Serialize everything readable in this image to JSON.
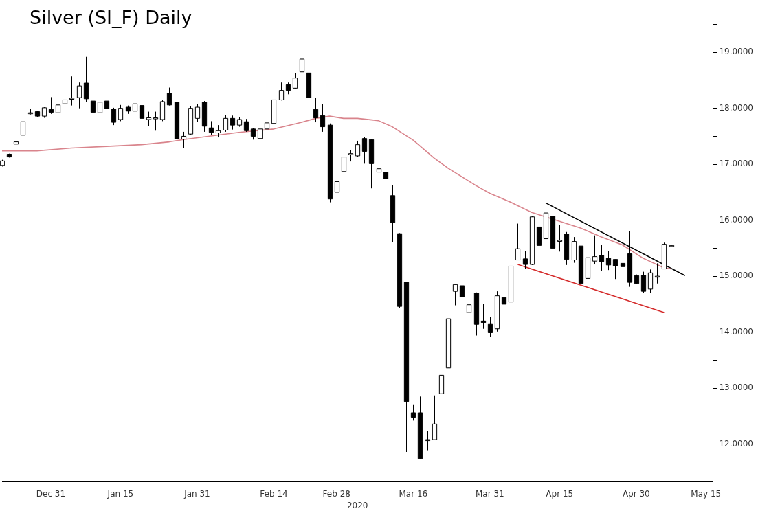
{
  "chart_data": {
    "type": "candlestick",
    "title": "Silver (SI_F) Daily",
    "xlabel": "2020",
    "categories": [
      null,
      null,
      null,
      null,
      null,
      null,
      null,
      "Dec 31",
      null,
      null,
      null,
      null,
      null,
      null,
      null,
      null,
      null,
      "Jan 15",
      null,
      null,
      null,
      null,
      null,
      null,
      null,
      null,
      null,
      null,
      "Jan 31",
      null,
      null,
      null,
      null,
      null,
      null,
      null,
      null,
      null,
      null,
      "Feb 14",
      null,
      null,
      null,
      null,
      null,
      null,
      null,
      null,
      "Feb 28",
      null,
      null,
      null,
      null,
      null,
      null,
      null,
      null,
      null,
      null,
      "Mar 16",
      null,
      null,
      null,
      null,
      null,
      null,
      null,
      null,
      null,
      null,
      "Mar 31",
      null,
      null,
      null,
      null,
      null,
      null,
      null,
      null,
      null,
      "Apr 15",
      null,
      null,
      null,
      null,
      null,
      null,
      null,
      null,
      null,
      null,
      "Apr 30",
      null,
      null,
      null,
      null,
      null,
      null,
      null,
      null,
      null,
      "May 15",
      null
    ],
    "ohlc": [
      [
        16.98,
        17.08,
        16.96,
        17.06
      ],
      [
        17.18,
        17.19,
        17.12,
        17.13
      ],
      [
        17.36,
        17.41,
        17.35,
        17.4
      ],
      [
        17.52,
        17.77,
        17.51,
        17.76
      ],
      [
        17.91,
        17.99,
        17.89,
        17.92
      ],
      [
        17.94,
        17.95,
        17.85,
        17.86
      ],
      [
        17.86,
        18.02,
        17.83,
        18.01
      ],
      [
        17.98,
        18.2,
        17.9,
        17.93
      ],
      [
        17.92,
        18.17,
        17.82,
        18.06
      ],
      [
        18.08,
        18.35,
        18.06,
        18.15
      ],
      [
        18.17,
        18.57,
        18.05,
        18.18
      ],
      [
        18.19,
        18.46,
        18.0,
        18.4
      ],
      [
        18.45,
        18.92,
        18.11,
        18.17
      ],
      [
        18.13,
        18.24,
        17.82,
        17.93
      ],
      [
        17.92,
        18.17,
        17.87,
        18.11
      ],
      [
        18.13,
        18.17,
        17.92,
        17.99
      ],
      [
        17.99,
        18.01,
        17.7,
        17.75
      ],
      [
        17.8,
        18.06,
        17.77,
        18.0
      ],
      [
        18.02,
        18.05,
        17.9,
        17.95
      ],
      [
        17.95,
        18.18,
        17.92,
        18.08
      ],
      [
        18.05,
        18.18,
        17.63,
        17.82
      ],
      [
        17.8,
        17.94,
        17.68,
        17.83
      ],
      [
        17.82,
        17.94,
        17.6,
        17.83
      ],
      [
        17.8,
        18.15,
        17.77,
        18.12
      ],
      [
        18.27,
        18.37,
        18.05,
        18.06
      ],
      [
        18.11,
        18.12,
        17.43,
        17.45
      ],
      [
        17.45,
        17.58,
        17.29,
        17.5
      ],
      [
        17.54,
        18.04,
        17.53,
        18.0
      ],
      [
        17.82,
        18.08,
        17.76,
        18.02
      ],
      [
        18.11,
        18.13,
        17.58,
        17.68
      ],
      [
        17.65,
        17.77,
        17.52,
        17.57
      ],
      [
        17.56,
        17.7,
        17.48,
        17.6
      ],
      [
        17.61,
        17.88,
        17.58,
        17.82
      ],
      [
        17.82,
        17.87,
        17.62,
        17.7
      ],
      [
        17.7,
        17.84,
        17.67,
        17.8
      ],
      [
        17.76,
        17.81,
        17.58,
        17.6
      ],
      [
        17.63,
        17.64,
        17.44,
        17.5
      ],
      [
        17.46,
        17.73,
        17.44,
        17.63
      ],
      [
        17.63,
        17.81,
        17.62,
        17.74
      ],
      [
        17.73,
        18.23,
        17.69,
        18.15
      ],
      [
        18.15,
        18.46,
        18.14,
        18.32
      ],
      [
        18.42,
        18.46,
        18.25,
        18.32
      ],
      [
        18.36,
        18.63,
        18.35,
        18.54
      ],
      [
        18.65,
        18.94,
        18.54,
        18.88
      ],
      [
        18.63,
        18.63,
        17.82,
        18.19
      ],
      [
        17.98,
        18.18,
        17.75,
        17.83
      ],
      [
        17.87,
        18.08,
        17.58,
        17.67
      ],
      [
        17.7,
        17.73,
        16.32,
        16.38
      ],
      [
        16.5,
        16.98,
        16.38,
        16.69
      ],
      [
        16.87,
        17.31,
        16.75,
        17.13
      ],
      [
        17.18,
        17.25,
        17.05,
        17.19
      ],
      [
        17.15,
        17.42,
        17.13,
        17.35
      ],
      [
        17.46,
        17.49,
        17.01,
        17.23
      ],
      [
        17.44,
        17.44,
        16.57,
        17.01
      ],
      [
        16.86,
        17.15,
        16.77,
        16.92
      ],
      [
        16.86,
        16.87,
        16.65,
        16.74
      ],
      [
        16.44,
        16.63,
        15.61,
        15.96
      ],
      [
        15.76,
        15.77,
        14.43,
        14.46
      ],
      [
        14.89,
        14.89,
        11.86,
        12.76
      ],
      [
        12.56,
        12.71,
        12.42,
        12.48
      ],
      [
        12.56,
        12.85,
        11.74,
        11.74
      ],
      [
        12.07,
        12.23,
        11.89,
        12.08
      ],
      [
        12.08,
        12.87,
        12.07,
        12.36
      ],
      [
        12.9,
        13.23,
        12.9,
        13.23
      ],
      [
        13.36,
        14.24,
        13.36,
        14.24
      ],
      [
        14.73,
        14.86,
        14.48,
        14.85
      ],
      [
        14.83,
        14.84,
        14.62,
        14.63
      ],
      [
        14.35,
        14.5,
        14.34,
        14.49
      ],
      [
        14.7,
        14.71,
        13.94,
        14.14
      ],
      [
        14.2,
        14.5,
        14.06,
        14.17
      ],
      [
        14.14,
        14.27,
        13.92,
        13.99
      ],
      [
        14.06,
        14.73,
        14.01,
        14.65
      ],
      [
        14.62,
        14.76,
        14.43,
        14.5
      ],
      [
        14.54,
        15.42,
        14.37,
        15.18
      ],
      [
        15.29,
        15.94,
        15.29,
        15.49
      ],
      [
        15.31,
        15.45,
        15.13,
        15.21
      ],
      [
        15.21,
        16.08,
        15.2,
        16.06
      ],
      [
        15.88,
        15.98,
        15.39,
        15.55
      ],
      [
        15.67,
        16.31,
        15.67,
        16.13
      ],
      [
        16.07,
        16.08,
        15.49,
        15.5
      ],
      [
        15.63,
        15.92,
        15.44,
        15.64
      ],
      [
        15.75,
        15.79,
        15.2,
        15.3
      ],
      [
        15.29,
        15.7,
        15.24,
        15.62
      ],
      [
        15.54,
        15.54,
        14.56,
        14.87
      ],
      [
        14.96,
        15.34,
        14.81,
        15.33
      ],
      [
        15.27,
        15.73,
        15.21,
        15.35
      ],
      [
        15.37,
        15.56,
        15.1,
        15.26
      ],
      [
        15.32,
        15.45,
        15.11,
        15.2
      ],
      [
        15.3,
        15.3,
        14.95,
        15.18
      ],
      [
        15.23,
        15.49,
        15.13,
        15.17
      ],
      [
        15.4,
        15.8,
        14.81,
        14.89
      ],
      [
        15.01,
        15.03,
        14.86,
        14.87
      ],
      [
        15.02,
        15.08,
        14.7,
        14.73
      ],
      [
        14.77,
        15.12,
        14.7,
        15.06
      ],
      [
        14.99,
        15.23,
        14.87,
        15.0
      ],
      [
        15.13,
        15.6,
        15.13,
        15.57
      ],
      [
        15.55,
        15.56,
        15.54,
        15.55
      ],
      null,
      null,
      null,
      null,
      null,
      null
    ],
    "series": [
      {
        "type": "line",
        "color": "#d9848c",
        "values": [
          17.24,
          null,
          null,
          null,
          null,
          17.24,
          null,
          null,
          null,
          null,
          17.29,
          null,
          null,
          null,
          null,
          17.32,
          null,
          null,
          null,
          null,
          17.35,
          null,
          null,
          null,
          17.4,
          null,
          17.44,
          null,
          null,
          17.49,
          null,
          null,
          null,
          null,
          17.57,
          null,
          null,
          null,
          null,
          17.63,
          null,
          null,
          null,
          17.75,
          null,
          17.82,
          null,
          17.86,
          null,
          17.82,
          null,
          17.82,
          null,
          null,
          17.78,
          null,
          17.67,
          null,
          null,
          17.43,
          null,
          null,
          17.11,
          null,
          16.93,
          null,
          null,
          null,
          16.62,
          null,
          16.48,
          null,
          null,
          16.32,
          null,
          null,
          16.14,
          null,
          null,
          16.02,
          null,
          null,
          null,
          15.86,
          null,
          null,
          15.7,
          null,
          null,
          15.56,
          null,
          null,
          15.32,
          null,
          null,
          15.15,
          15.13,
          null,
          null,
          null,
          null,
          null,
          null
        ]
      },
      {
        "type": "line",
        "color": "#000000",
        "values": [
          null,
          null,
          null,
          null,
          null,
          null,
          null,
          null,
          null,
          null,
          null,
          null,
          null,
          null,
          null,
          null,
          null,
          null,
          null,
          null,
          null,
          null,
          null,
          null,
          null,
          null,
          null,
          null,
          null,
          null,
          null,
          null,
          null,
          null,
          null,
          null,
          null,
          null,
          null,
          null,
          null,
          null,
          null,
          null,
          null,
          null,
          null,
          null,
          null,
          null,
          null,
          null,
          null,
          null,
          null,
          null,
          null,
          null,
          null,
          null,
          null,
          null,
          null,
          null,
          null,
          null,
          null,
          null,
          null,
          null,
          null,
          null,
          null,
          null,
          null,
          null,
          null,
          null,
          16.31,
          null,
          null,
          null,
          null,
          null,
          null,
          null,
          null,
          null,
          null,
          null,
          null,
          null,
          null,
          null,
          null,
          null,
          null,
          null,
          15.01,
          null,
          null,
          null,
          null
        ]
      },
      {
        "type": "line",
        "color": "#d42a2a",
        "values": [
          null,
          null,
          null,
          null,
          null,
          null,
          null,
          null,
          null,
          null,
          null,
          null,
          null,
          null,
          null,
          null,
          null,
          null,
          null,
          null,
          null,
          null,
          null,
          null,
          null,
          null,
          null,
          null,
          null,
          null,
          null,
          null,
          null,
          null,
          null,
          null,
          null,
          null,
          null,
          null,
          null,
          null,
          null,
          null,
          null,
          null,
          null,
          null,
          null,
          null,
          null,
          null,
          null,
          null,
          null,
          null,
          null,
          null,
          null,
          null,
          null,
          null,
          null,
          null,
          null,
          null,
          null,
          null,
          null,
          null,
          null,
          null,
          null,
          null,
          15.21,
          null,
          null,
          null,
          null,
          null,
          null,
          null,
          null,
          null,
          null,
          null,
          null,
          null,
          null,
          null,
          null,
          null,
          null,
          null,
          null,
          14.35,
          null,
          null,
          null,
          null,
          null,
          null,
          null
        ]
      }
    ],
    "ylim": [
      11.33,
      19.81
    ],
    "yticks": [
      {
        "value": 12,
        "label": "12.0000"
      },
      {
        "value": 12.5,
        "label": null
      },
      {
        "value": 13,
        "label": "13.0000"
      },
      {
        "value": 13.5,
        "label": null
      },
      {
        "value": 14,
        "label": "14.0000"
      },
      {
        "value": 14.5,
        "label": null
      },
      {
        "value": 15,
        "label": "15.0000"
      },
      {
        "value": 15.5,
        "label": null
      },
      {
        "value": 16,
        "label": "16.0000"
      },
      {
        "value": 16.5,
        "label": null
      },
      {
        "value": 17,
        "label": "17.0000"
      },
      {
        "value": 17.5,
        "label": null
      },
      {
        "value": 18,
        "label": "18.0000"
      },
      {
        "value": 18.5,
        "label": null
      },
      {
        "value": 19,
        "label": "19.0000"
      },
      {
        "value": 19.5,
        "label": null
      }
    ]
  }
}
